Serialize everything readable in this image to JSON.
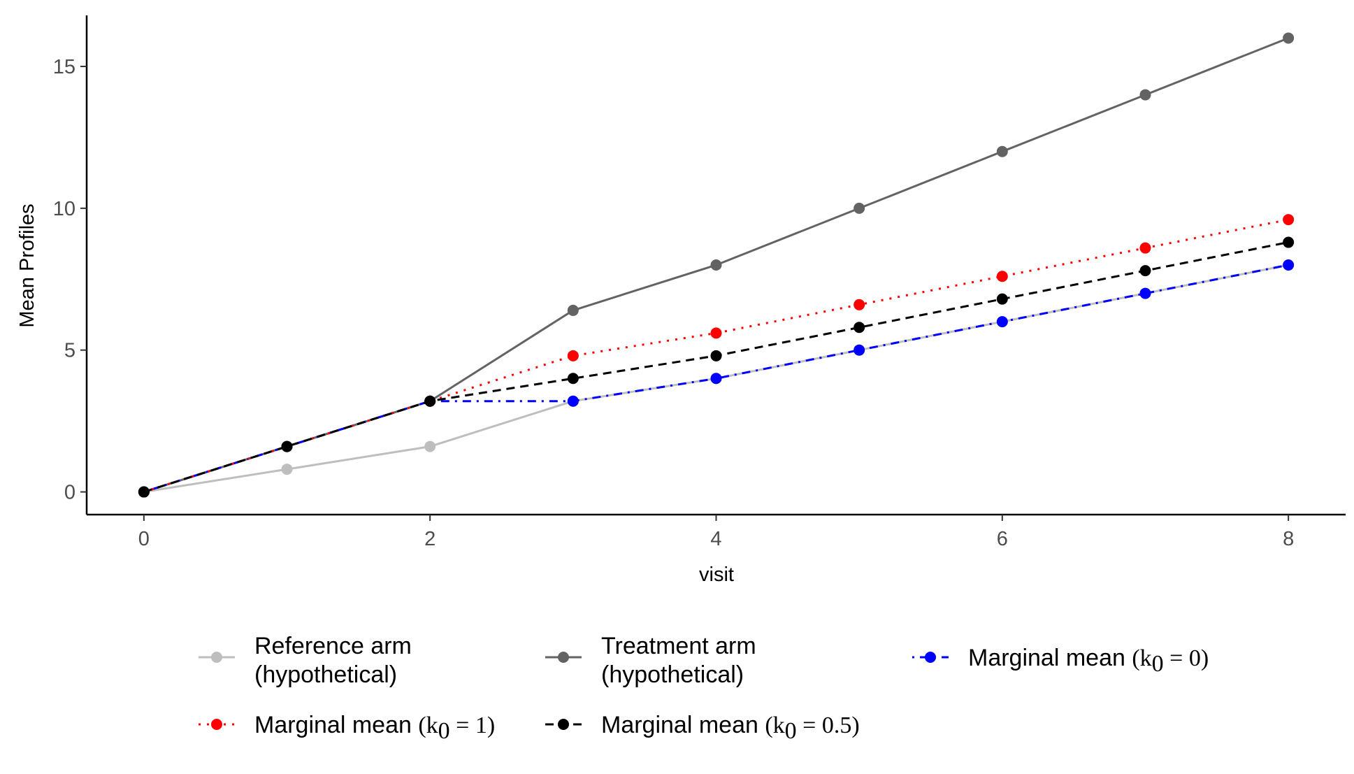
{
  "chart_data": {
    "type": "line",
    "title": "",
    "xlabel": "visit",
    "ylabel": "Mean Profiles",
    "xlim": [
      -0.4,
      8.4
    ],
    "ylim": [
      -0.8,
      16.8
    ],
    "grid": false,
    "legend_position": "bottom",
    "x_ticks": [
      0,
      2,
      4,
      6,
      8
    ],
    "y_ticks": [
      0,
      5,
      10,
      15
    ],
    "x": [
      0,
      1,
      2,
      3,
      4,
      5,
      6,
      7,
      8
    ],
    "series": [
      {
        "name": "Reference arm (hypothetical)",
        "legend_lines": [
          "Reference arm",
          "(hypothetical)"
        ],
        "color": "#bebebe",
        "line_style": "solid",
        "values": [
          0,
          0.8,
          1.6,
          3.2,
          4.0,
          5.0,
          6.0,
          7.0,
          8.0
        ]
      },
      {
        "name": "Treatment arm (hypothetical)",
        "legend_lines": [
          "Treatment arm",
          "(hypothetical)"
        ],
        "color": "#636363",
        "line_style": "solid",
        "values": [
          0,
          1.6,
          3.2,
          6.4,
          8.0,
          10.0,
          12.0,
          14.0,
          16.0
        ]
      },
      {
        "name": "Marginal mean (k0 = 0)",
        "legend_prefix": "Marginal mean",
        "k_sub": "0",
        "k_value": "0",
        "color": "#0000ff",
        "line_style": "dotdash",
        "values": [
          0,
          1.6,
          3.2,
          3.2,
          4.0,
          5.0,
          6.0,
          7.0,
          8.0
        ]
      },
      {
        "name": "Marginal mean (k0 = 1)",
        "legend_prefix": "Marginal mean",
        "k_sub": "0",
        "k_value": "1",
        "color": "#ff0000",
        "line_style": "dotted",
        "values": [
          0,
          1.6,
          3.2,
          4.8,
          5.6,
          6.6,
          7.6,
          8.6,
          9.6
        ]
      },
      {
        "name": "Marginal mean (k0 = 0.5)",
        "legend_prefix": "Marginal mean",
        "k_sub": "0",
        "k_value": "0.5",
        "color": "#000000",
        "line_style": "dashed",
        "values": [
          0,
          1.6,
          3.2,
          4.0,
          4.8,
          5.8,
          6.8,
          7.8,
          8.8
        ]
      }
    ]
  }
}
